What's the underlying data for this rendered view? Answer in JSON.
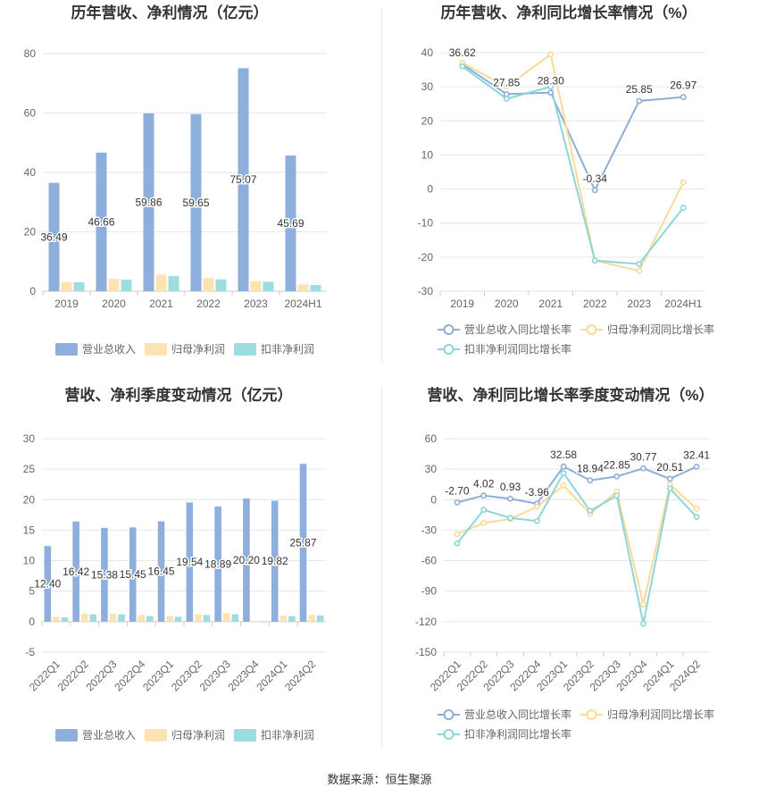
{
  "source_label": "数据来源：恒生聚源",
  "colors": {
    "revenue": "#8eaedb",
    "net_profit": "#fde3b1",
    "deducted_profit": "#9ddcdf",
    "revenue_line": "#8caed9",
    "net_line": "#fbd996",
    "deducted_line": "#8cd6da",
    "grid": "#e6e6e6",
    "axis_text": "#666666",
    "title_text": "#333333"
  },
  "chart_data": [
    {
      "type": "bar",
      "title": "历年营收、净利情况（亿元）",
      "categories": [
        "2019",
        "2020",
        "2021",
        "2022",
        "2023",
        "2024H1"
      ],
      "ylim": [
        0,
        80
      ],
      "yticks": [
        0,
        20,
        40,
        60,
        80
      ],
      "grid": true,
      "legend_position": "bottom",
      "series": [
        {
          "name": "营业总收入",
          "values": [
            36.49,
            46.66,
            59.86,
            59.65,
            75.07,
            45.69
          ],
          "labels": [
            "36.49",
            "46.66",
            "59.86",
            "59.65",
            "75.07",
            "45.69"
          ]
        },
        {
          "name": "归母净利润",
          "values": [
            3.1,
            4.2,
            5.6,
            4.5,
            3.4,
            2.3
          ]
        },
        {
          "name": "扣非净利润",
          "values": [
            3.0,
            3.9,
            5.1,
            4.0,
            3.2,
            2.1
          ]
        }
      ]
    },
    {
      "type": "line",
      "title": "历年营收、净利同比增长率情况（%）",
      "categories": [
        "2019",
        "2020",
        "2021",
        "2022",
        "2023",
        "2024H1"
      ],
      "ylim": [
        -30,
        40
      ],
      "yticks": [
        -30,
        -20,
        -10,
        0,
        10,
        20,
        30,
        40
      ],
      "grid": true,
      "legend_position": "bottom",
      "series": [
        {
          "name": "营业总收入同比增长率",
          "values": [
            36.62,
            27.85,
            28.3,
            -0.34,
            25.85,
            26.97
          ],
          "labels": [
            "36.62",
            "27.85",
            "28.30",
            "-0.34",
            "25.85",
            "26.97"
          ]
        },
        {
          "name": "归母净利润同比增长率",
          "values": [
            37.0,
            30.0,
            39.5,
            -21.0,
            -24.0,
            2.0
          ]
        },
        {
          "name": "扣非净利润同比增长率",
          "values": [
            36.0,
            26.5,
            30.0,
            -21.0,
            -22.0,
            -5.5
          ]
        }
      ]
    },
    {
      "type": "bar",
      "title": "营收、净利季度变动情况（亿元）",
      "categories": [
        "2022Q1",
        "2022Q2",
        "2022Q3",
        "2022Q4",
        "2023Q1",
        "2023Q2",
        "2023Q3",
        "2023Q4",
        "2024Q1",
        "2024Q2"
      ],
      "ylim": [
        -5,
        30
      ],
      "yticks": [
        -5,
        0,
        5,
        10,
        15,
        20,
        25,
        30
      ],
      "grid": true,
      "legend_position": "bottom",
      "series": [
        {
          "name": "营业总收入",
          "values": [
            12.4,
            16.42,
            15.38,
            15.45,
            16.45,
            19.54,
            18.89,
            20.2,
            19.82,
            25.87
          ],
          "labels": [
            "12.40",
            "16.42",
            "15.38",
            "15.45",
            "16.45",
            "19.54",
            "18.89",
            "20.20",
            "19.82",
            "25.87"
          ]
        },
        {
          "name": "归母净利润",
          "values": [
            0.8,
            1.3,
            1.3,
            1.1,
            0.9,
            1.2,
            1.4,
            -0.1,
            1.0,
            1.1
          ]
        },
        {
          "name": "扣非净利润",
          "values": [
            0.7,
            1.2,
            1.2,
            0.9,
            0.8,
            1.1,
            1.2,
            -0.1,
            0.9,
            1.0
          ]
        }
      ]
    },
    {
      "type": "line",
      "title": "营收、净利同比增长率季度变动情况（%）",
      "categories": [
        "2022Q1",
        "2022Q2",
        "2022Q3",
        "2022Q4",
        "2023Q1",
        "2023Q2",
        "2023Q3",
        "2023Q4",
        "2024Q1",
        "2024Q2"
      ],
      "ylim": [
        -150,
        60
      ],
      "yticks": [
        -150,
        -120,
        -90,
        -60,
        -30,
        0,
        30,
        60
      ],
      "grid": true,
      "legend_position": "bottom",
      "series": [
        {
          "name": "营业总收入同比增长率",
          "values": [
            -2.7,
            4.02,
            0.93,
            -3.96,
            32.58,
            18.94,
            22.85,
            30.77,
            20.51,
            32.41
          ],
          "labels": [
            "-2.70",
            "4.02",
            "0.93",
            "-3.96",
            "32.58",
            "18.94",
            "22.85",
            "30.77",
            "20.51",
            "32.41"
          ]
        },
        {
          "name": "归母净利润同比增长率",
          "values": [
            -34,
            -23,
            -19,
            -7,
            14,
            -14,
            8,
            -103,
            15,
            -9
          ]
        },
        {
          "name": "扣非净利润同比增长率",
          "values": [
            -43,
            -10,
            -18,
            -21,
            26,
            -11,
            4,
            -122,
            11,
            -17
          ]
        }
      ]
    }
  ]
}
